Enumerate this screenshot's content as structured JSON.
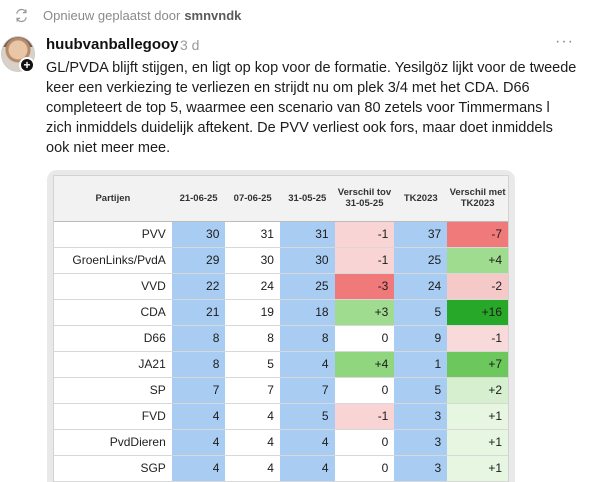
{
  "repost": {
    "label": "Opnieuw geplaatst door",
    "user": "smnvndk"
  },
  "post": {
    "author": "huubvanballegooy",
    "time": "3 d",
    "more": "···",
    "text": "GL/PVDA blijft stijgen, en ligt op kop voor de formatie. Yesilgöz lijkt voor de tweede keer een verkiezing te verliezen en strijdt nu om plek 3/4 met het CDA. D66 completeert de top 5, waarmee een scenario van 80 zetels voor Timmermans l zich inmiddels duidelijk aftekent. De PVV verliest ook fors, maar doet inmiddels ook niet meer mee."
  },
  "table": {
    "headers": [
      "Partijen",
      "21-06-25",
      "07-06-25",
      "31-05-25",
      "Verschil tov 31-05-25",
      "TK2023",
      "Verschil met TK2023"
    ],
    "rows": [
      {
        "party": "PVV",
        "a": "30",
        "b": "31",
        "c": "31",
        "d": "-1",
        "e": "37",
        "f": "-7",
        "dcol": "#f8d4d4",
        "fcol": "#f07a7a"
      },
      {
        "party": "GroenLinks/PvdA",
        "a": "29",
        "b": "30",
        "c": "30",
        "d": "-1",
        "e": "25",
        "f": "+4",
        "dcol": "#f8d4d4",
        "fcol": "#9fdc8f"
      },
      {
        "party": "VVD",
        "a": "22",
        "b": "24",
        "c": "25",
        "d": "-3",
        "e": "24",
        "f": "-2",
        "dcol": "#f07a7a",
        "fcol": "#f6c9c9"
      },
      {
        "party": "CDA",
        "a": "21",
        "b": "19",
        "c": "18",
        "d": "+3",
        "e": "5",
        "f": "+16",
        "dcol": "#9fdc8f",
        "fcol": "#28a828"
      },
      {
        "party": "D66",
        "a": "8",
        "b": "8",
        "c": "8",
        "d": "0",
        "e": "9",
        "f": "-1",
        "dcol": "#ffffff",
        "fcol": "#f8dada"
      },
      {
        "party": "JA21",
        "a": "8",
        "b": "5",
        "c": "4",
        "d": "+4",
        "e": "1",
        "f": "+7",
        "dcol": "#8fd67f",
        "fcol": "#6cc85c"
      },
      {
        "party": "SP",
        "a": "7",
        "b": "7",
        "c": "7",
        "d": "0",
        "e": "5",
        "f": "+2",
        "dcol": "#ffffff",
        "fcol": "#d6f0cf"
      },
      {
        "party": "FVD",
        "a": "4",
        "b": "4",
        "c": "5",
        "d": "-1",
        "e": "3",
        "f": "+1",
        "dcol": "#f8d4d4",
        "fcol": "#e6f6e1"
      },
      {
        "party": "PvdDieren",
        "a": "4",
        "b": "4",
        "c": "4",
        "d": "0",
        "e": "3",
        "f": "+1",
        "dcol": "#ffffff",
        "fcol": "#e6f6e1"
      },
      {
        "party": "SGP",
        "a": "4",
        "b": "4",
        "c": "4",
        "d": "0",
        "e": "3",
        "f": "+1",
        "dcol": "#ffffff",
        "fcol": "#e6f6e1"
      }
    ]
  },
  "colors": {
    "blue_col": "#a9cdf2",
    "header_bg": "#f2f2f2"
  }
}
